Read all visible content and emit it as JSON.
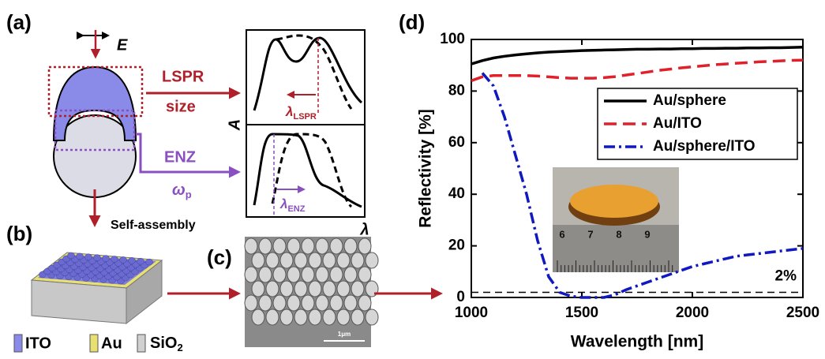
{
  "panel_a": {
    "label": "(a)",
    "field": "E",
    "lspr": "LSPR",
    "size": "size",
    "enz": "ENZ",
    "omega": {
      "main": "ω",
      "sub": "p"
    },
    "absorbance": "A",
    "lambda_lspr": {
      "main": "λ",
      "sub": "LSPR"
    },
    "lambda_enz": {
      "main": "λ",
      "sub": "ENZ"
    },
    "lambda": "λ"
  },
  "panel_b": {
    "label": "(b)",
    "process": "Self-assembly",
    "legend": [
      {
        "text": "ITO"
      },
      {
        "text": "Au"
      },
      {
        "main": "SiO",
        "sub": "2"
      }
    ]
  },
  "panel_c": {
    "label": "(c)",
    "scale": "1μm"
  },
  "panel_d": {
    "label": "(d)",
    "ruler": [
      "6",
      "7",
      "8",
      "9"
    ]
  },
  "chart_data": {
    "type": "line",
    "xlabel": "Wavelength [nm]",
    "ylabel": "Reflectivity [%]",
    "x": [
      1000,
      1050,
      1100,
      1150,
      1200,
      1250,
      1300,
      1350,
      1400,
      1450,
      1500,
      1550,
      1600,
      1650,
      1700,
      1750,
      1800,
      1850,
      1900,
      1950,
      2000,
      2050,
      2100,
      2150,
      2200,
      2250,
      2300,
      2350,
      2400,
      2450,
      2500
    ],
    "xlim": [
      1000,
      2500
    ],
    "xticks": [
      1000,
      1500,
      2000,
      2500
    ],
    "ylim": [
      0,
      100
    ],
    "yticks": [
      0,
      20,
      40,
      60,
      80,
      100
    ],
    "legend": "upper right",
    "series": [
      {
        "name": "Au/sphere",
        "color": "#000000",
        "dash": "solid",
        "values": [
          90.5,
          91.8,
          92.8,
          93.5,
          94,
          94.4,
          94.8,
          95.1,
          95.3,
          95.5,
          95.7,
          95.8,
          95.9,
          96,
          96.1,
          96.2,
          96.2,
          96.3,
          96.3,
          96.4,
          96.4,
          96.5,
          96.5,
          96.6,
          96.6,
          96.7,
          96.7,
          96.8,
          96.8,
          96.9,
          97
        ]
      },
      {
        "name": "Au/ITO",
        "color": "#e0202a",
        "dash": "dashed",
        "values": [
          84,
          85.5,
          86,
          86,
          86,
          86,
          85.8,
          85.5,
          85.2,
          85,
          85,
          85,
          85.2,
          85.6,
          86.2,
          86.8,
          87.4,
          88,
          88.5,
          89,
          89.4,
          89.8,
          90.2,
          90.5,
          90.8,
          91,
          91.3,
          91.5,
          91.7,
          91.9,
          92
        ]
      },
      {
        "name": "Au/sphere/ITO",
        "color": "#1018c0",
        "dash": "dashdot",
        "values": [
          null,
          87,
          82,
          70,
          55,
          40,
          22,
          8,
          2,
          0.5,
          0,
          0,
          0,
          1,
          3,
          4.5,
          6,
          7.5,
          9,
          10.5,
          12,
          13,
          14,
          15,
          16,
          16.5,
          17,
          17.5,
          18,
          18.5,
          19
        ]
      }
    ],
    "ref_line": {
      "value": 2,
      "label": "2%"
    }
  }
}
